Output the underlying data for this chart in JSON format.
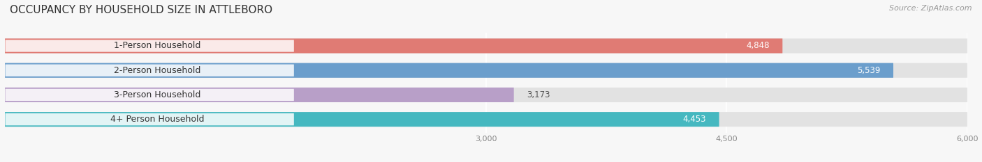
{
  "title": "OCCUPANCY BY HOUSEHOLD SIZE IN ATTLEBORO",
  "source": "Source: ZipAtlas.com",
  "categories": [
    "1-Person Household",
    "2-Person Household",
    "3-Person Household",
    "4+ Person Household"
  ],
  "values": [
    4848,
    5539,
    3173,
    4453
  ],
  "colors": [
    "#e07b74",
    "#6b9ecc",
    "#b89fc8",
    "#45b8c0"
  ],
  "bar_bg_color": "#e2e2e2",
  "xstart": 0,
  "xlim_max": 6000,
  "xticks": [
    3000,
    4500,
    6000
  ],
  "xtick_labels": [
    "3,000",
    "4,500",
    "6,000"
  ],
  "bg_color": "#f7f7f7",
  "bar_height": 0.6,
  "title_fontsize": 11,
  "source_fontsize": 8,
  "label_fontsize": 8.5,
  "cat_fontsize": 9,
  "value_label_dark": "#555555"
}
